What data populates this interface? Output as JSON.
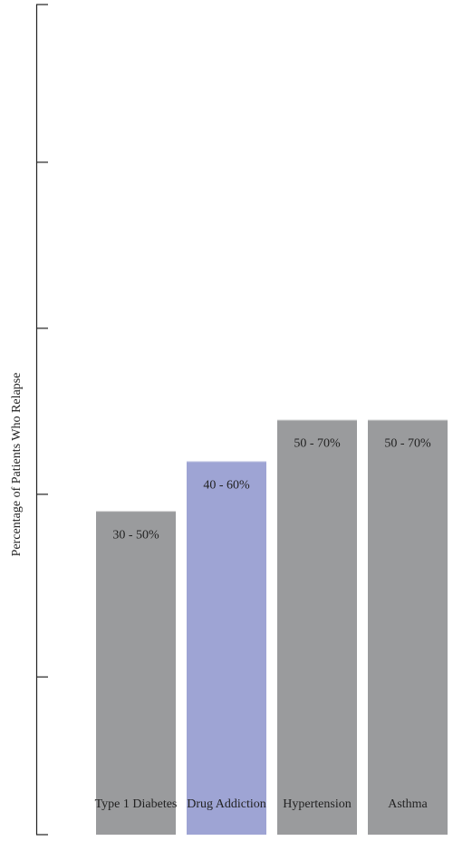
{
  "chart_data": {
    "type": "bar",
    "y_label": "Percentage of Patients Who Relapse",
    "categories": [
      "Type 1 Diabetes",
      "Drug Addiction",
      "Hypertension",
      "Asthma"
    ],
    "values": [
      39,
      45,
      50,
      50
    ],
    "value_labels": [
      "30 - 50%",
      "40 - 60%",
      "50 - 70%",
      "50 - 70%"
    ],
    "colors": [
      "#9a9b9d",
      "#9ea4d4",
      "#9a9b9d",
      "#9a9b9d"
    ],
    "ylim": [
      0,
      100
    ],
    "yticks": [
      0,
      19,
      41,
      61,
      81,
      100
    ],
    "grid": false
  }
}
